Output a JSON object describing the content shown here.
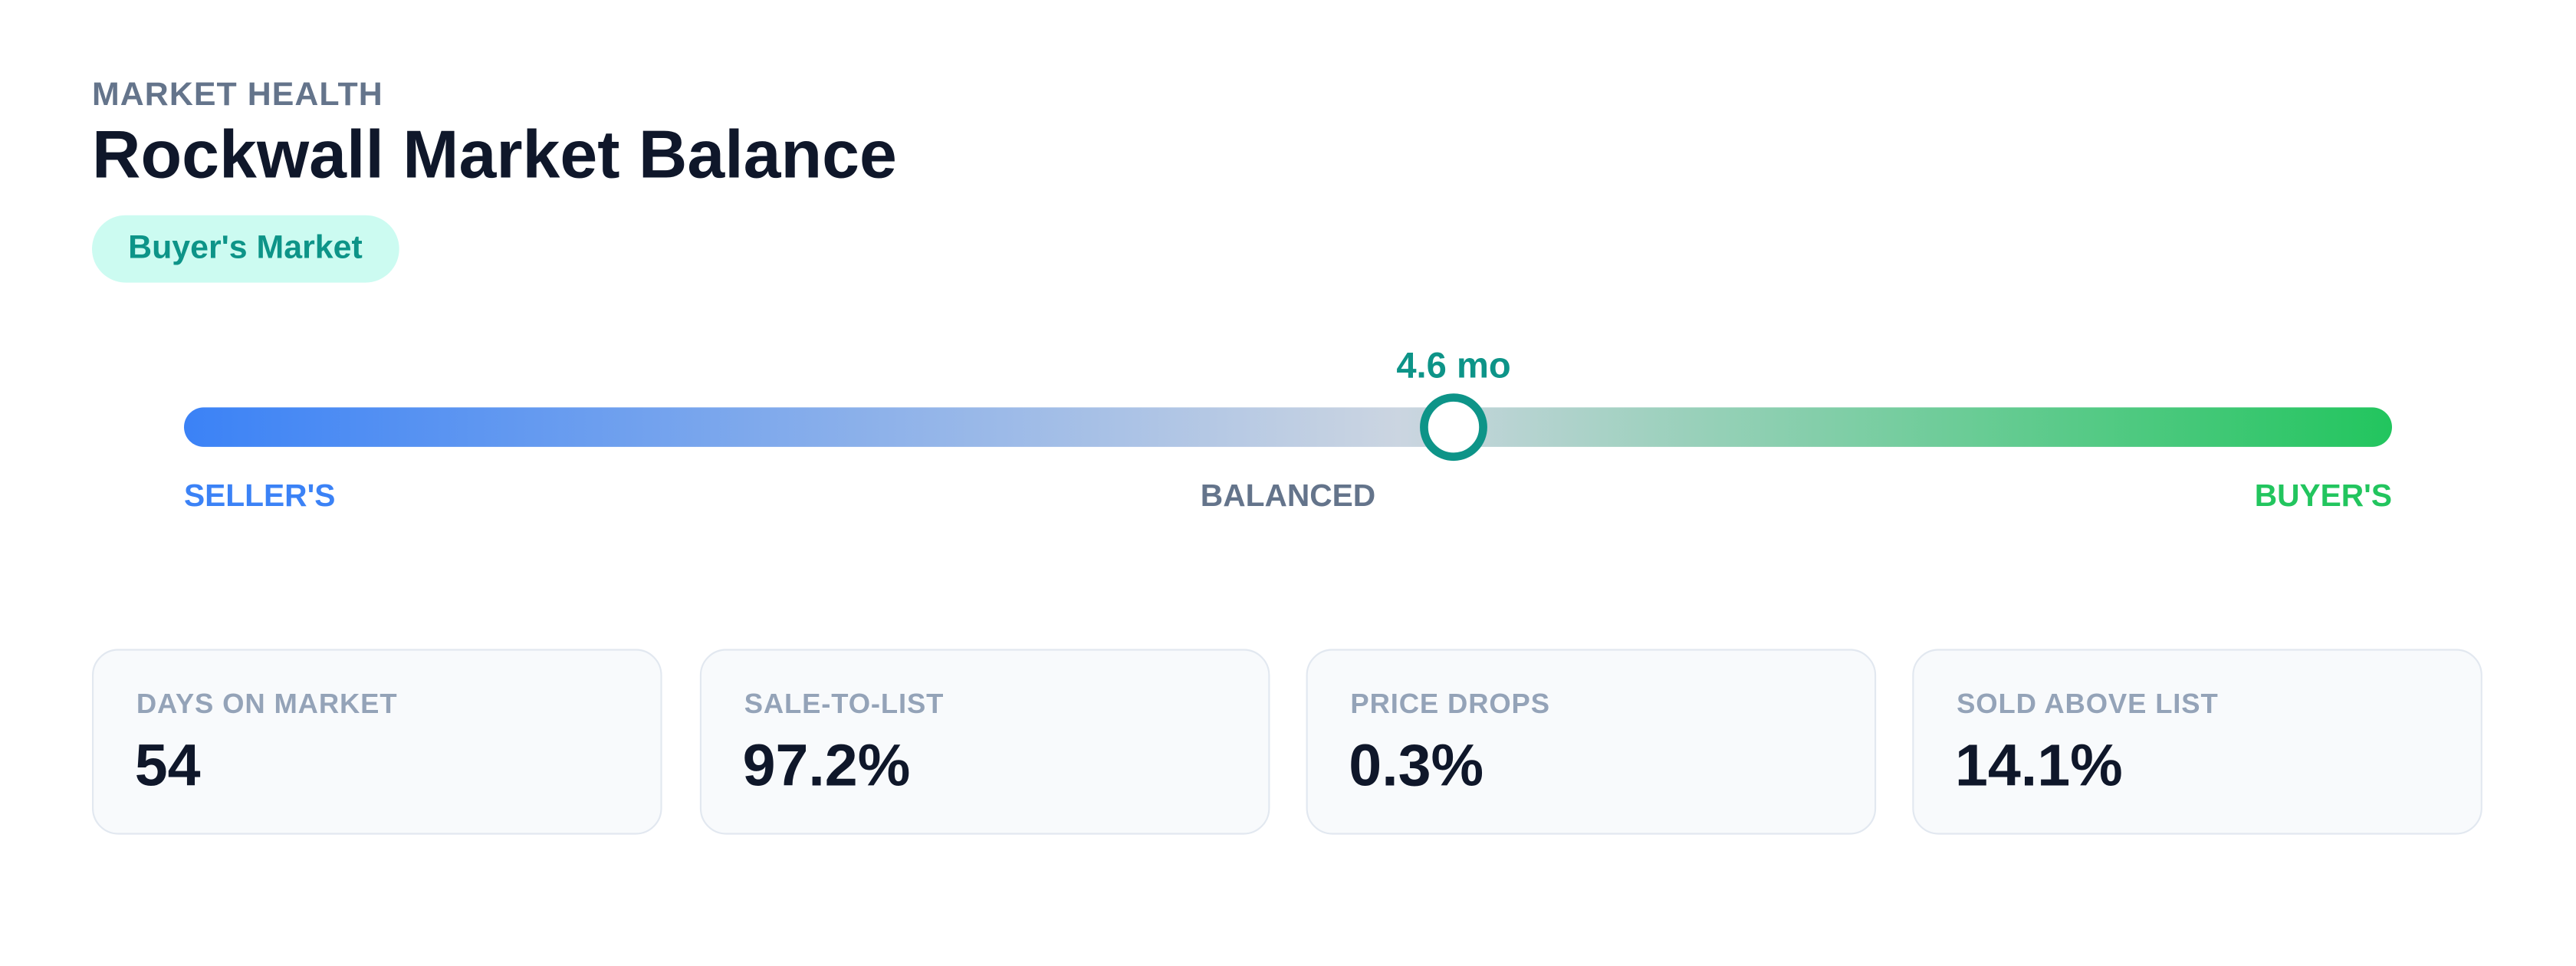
{
  "header": {
    "eyebrow": "MARKET HEALTH",
    "title": "Rockwall Market Balance",
    "badge": "Buyer's Market"
  },
  "gauge": {
    "value": 4.6,
    "value_label": "4.6 mo",
    "min": 0,
    "max": 8,
    "scale_labels": [
      "SELLER'S",
      "BALANCED",
      "BUYER'S"
    ]
  },
  "metrics": [
    {
      "label": "DAYS ON MARKET",
      "value": "54"
    },
    {
      "label": "SALE-TO-LIST",
      "value": "97.2%"
    },
    {
      "label": "PRICE DROPS",
      "value": "0.3%"
    },
    {
      "label": "SOLD ABOVE LIST",
      "value": "14.1%"
    }
  ]
}
